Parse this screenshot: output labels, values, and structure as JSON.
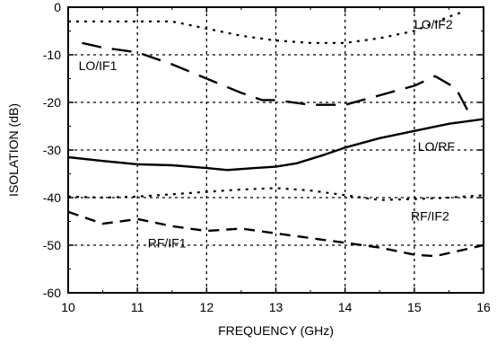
{
  "chart_data": {
    "type": "line",
    "xlabel": "FREQUENCY (GHz)",
    "ylabel": "ISOLATION (dB)",
    "xlim": [
      10,
      16
    ],
    "ylim": [
      -60,
      0
    ],
    "xticks": [
      "10",
      "11",
      "12",
      "13",
      "14",
      "15",
      "16"
    ],
    "yticks": [
      "0",
      "-10",
      "-20",
      "-30",
      "-40",
      "-50",
      "-60"
    ],
    "grid": true,
    "series": [
      {
        "name": "LO/IF2",
        "style": "dotted",
        "x": [
          10.0,
          10.5,
          11.0,
          11.5,
          12.0,
          12.5,
          13.0,
          13.5,
          14.0,
          14.5,
          15.0,
          15.5,
          15.7
        ],
        "y": [
          -3,
          -3,
          -3,
          -3,
          -4.5,
          -6,
          -7,
          -7.5,
          -7.5,
          -6.5,
          -5,
          -2,
          -1
        ]
      },
      {
        "name": "LO/IF1",
        "style": "long-dash",
        "x": [
          10.2,
          10.5,
          11.0,
          11.5,
          12.0,
          12.5,
          12.8,
          13.0,
          13.5,
          14.0,
          14.5,
          15.0,
          15.3,
          15.6,
          15.8
        ],
        "y": [
          -7.5,
          -8.5,
          -9.5,
          -12,
          -15,
          -18,
          -19.5,
          -19.5,
          -20.5,
          -20.5,
          -18.5,
          -16.5,
          -14.5,
          -17,
          -22.5
        ]
      },
      {
        "name": "LO/RF",
        "style": "solid",
        "x": [
          10.0,
          10.5,
          11.0,
          11.5,
          12.0,
          12.3,
          12.7,
          13.0,
          13.3,
          13.7,
          14.0,
          14.5,
          15.0,
          15.5,
          16.0
        ],
        "y": [
          -31.5,
          -32.3,
          -33,
          -33.2,
          -33.8,
          -34.2,
          -33.8,
          -33.5,
          -32.8,
          -31,
          -29.5,
          -27.5,
          -26,
          -24.5,
          -23.5
        ]
      },
      {
        "name": "RF/IF2",
        "style": "dotted",
        "x": [
          10.0,
          10.5,
          11.0,
          11.5,
          12.0,
          12.5,
          13.0,
          13.5,
          14.0,
          14.5,
          15.0,
          15.5,
          16.0
        ],
        "y": [
          -39.8,
          -40,
          -39.8,
          -39.3,
          -38.8,
          -38.3,
          -38,
          -38.5,
          -39.5,
          -40.5,
          -40.3,
          -40,
          -39.5
        ]
      },
      {
        "name": "RF/IF1",
        "style": "dashed",
        "x": [
          10.0,
          10.5,
          11.0,
          11.5,
          12.0,
          12.5,
          13.0,
          13.5,
          14.0,
          14.5,
          15.0,
          15.3,
          15.7,
          16.0
        ],
        "y": [
          -43,
          -45.5,
          -44.5,
          -46,
          -47,
          -46.5,
          -47.5,
          -48.5,
          -49.5,
          -50.5,
          -52,
          -52.3,
          -51,
          -50
        ]
      }
    ],
    "labels": [
      {
        "text": "LO/IF2",
        "x": 15.0,
        "y": -4.5
      },
      {
        "text": "LO/IF1",
        "x": 10.15,
        "y": -13.2
      },
      {
        "text": "LO/RF",
        "x": 15.05,
        "y": -30.2
      },
      {
        "text": "RF/IF2",
        "x": 14.95,
        "y": -44.8
      },
      {
        "text": "RF/IF1",
        "x": 11.15,
        "y": -50.5
      }
    ]
  }
}
